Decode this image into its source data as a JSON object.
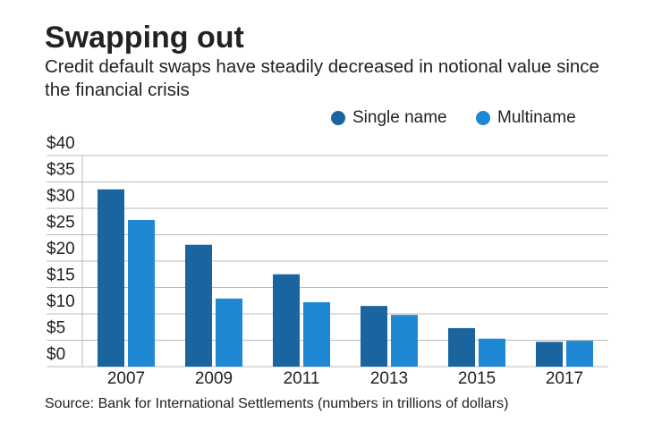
{
  "chart_data": {
    "type": "bar",
    "title": "Swapping out",
    "subtitle": "Credit default swaps have steadily decreased in notional value since the financial crisis",
    "source": "Source: Bank for International Settlements (numbers in trillions of dollars)",
    "categories": [
      "2007",
      "2009",
      "2011",
      "2013",
      "2015",
      "2017"
    ],
    "series": [
      {
        "name": "Single name",
        "color": "#1a65a0",
        "values": [
          33.6,
          23.1,
          17.5,
          11.5,
          7.3,
          4.7
        ]
      },
      {
        "name": "Multiname",
        "color": "#1e88d4",
        "values": [
          27.8,
          12.9,
          12.2,
          9.8,
          5.3,
          4.9
        ]
      }
    ],
    "ylim": [
      0,
      40
    ],
    "yticks": [
      {
        "value": 0,
        "label": "$0"
      },
      {
        "value": 5,
        "label": "$5"
      },
      {
        "value": 10,
        "label": "$10"
      },
      {
        "value": 15,
        "label": "$15"
      },
      {
        "value": 20,
        "label": "$20"
      },
      {
        "value": 25,
        "label": "$25"
      },
      {
        "value": 30,
        "label": "$30"
      },
      {
        "value": 35,
        "label": "$35"
      },
      {
        "value": 40,
        "label": "$40"
      }
    ],
    "grid": true
  }
}
